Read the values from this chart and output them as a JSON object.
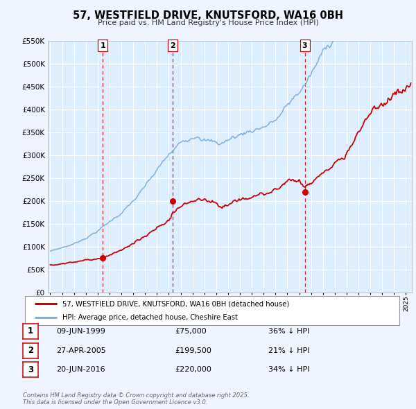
{
  "title": "57, WESTFIELD DRIVE, KNUTSFORD, WA16 0BH",
  "subtitle": "Price paid vs. HM Land Registry's House Price Index (HPI)",
  "legend_line1": "57, WESTFIELD DRIVE, KNUTSFORD, WA16 0BH (detached house)",
  "legend_line2": "HPI: Average price, detached house, Cheshire East",
  "footer": "Contains HM Land Registry data © Crown copyright and database right 2025.\nThis data is licensed under the Open Government Licence v3.0.",
  "sale_color": "#cc0000",
  "hpi_color": "#7aaedb",
  "background_color": "#f0f4ff",
  "plot_bg_color": "#ddeeff",
  "grid_color": "#ffffff",
  "vline_color": "#cc0000",
  "ylim": [
    0,
    550000
  ],
  "xlim_start": 1994.8,
  "xlim_end": 2025.5,
  "sales": [
    {
      "year": 1999.44,
      "price": 75000,
      "label": "1"
    },
    {
      "year": 2005.32,
      "price": 199500,
      "label": "2"
    },
    {
      "year": 2016.47,
      "price": 220000,
      "label": "3"
    }
  ],
  "table_rows": [
    {
      "num": "1",
      "date": "09-JUN-1999",
      "price": "£75,000",
      "hpi": "36% ↓ HPI"
    },
    {
      "num": "2",
      "date": "27-APR-2005",
      "price": "£199,500",
      "hpi": "21% ↓ HPI"
    },
    {
      "num": "3",
      "date": "20-JUN-2016",
      "price": "£220,000",
      "hpi": "34% ↓ HPI"
    }
  ]
}
